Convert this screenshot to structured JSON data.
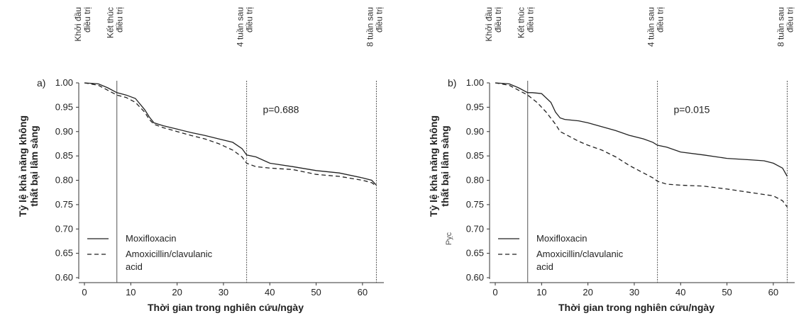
{
  "chart_data": [
    {
      "type": "line",
      "panel_label": "a)",
      "xlabel": "Thời gian trong nghiên cứu/ngày",
      "ylabel": [
        "Tỷ lệ khả năng không",
        "thất bại lâm sàng"
      ],
      "xticks": [
        0,
        10,
        20,
        30,
        40,
        50,
        60
      ],
      "yticks": [
        "1.00",
        "0.95",
        "0.90",
        "0.85",
        "0.80",
        "0.75",
        "0.70",
        "0.65",
        "0.60"
      ],
      "xlim": [
        0,
        64
      ],
      "ylim": [
        0.6,
        1.0
      ],
      "annotation": "p=0.688",
      "timepoints": [
        {
          "x": 0,
          "label": [
            "Khởi đầu",
            "điều trị"
          ]
        },
        {
          "x": 7,
          "label": [
            "Kết thúc",
            "điều trị"
          ]
        },
        {
          "x": 35,
          "label": [
            "4 tuần sau",
            "điều trị"
          ]
        },
        {
          "x": 63,
          "label": [
            "8 tuần sau",
            "điều trị"
          ]
        }
      ],
      "legend": [
        "Moxifloxacin",
        "Amoxicillin/clavulanic",
        "acid"
      ],
      "series": [
        {
          "name": "Moxifloxacin",
          "style": "solid",
          "x": [
            0,
            3,
            5,
            7,
            9,
            11,
            13,
            14,
            15,
            17,
            20,
            23,
            26,
            29,
            32,
            34,
            35,
            37,
            40,
            45,
            50,
            55,
            60,
            62,
            63
          ],
          "y": [
            1.0,
            0.998,
            0.99,
            0.98,
            0.975,
            0.968,
            0.945,
            0.93,
            0.918,
            0.912,
            0.905,
            0.898,
            0.892,
            0.885,
            0.878,
            0.865,
            0.852,
            0.848,
            0.835,
            0.828,
            0.82,
            0.815,
            0.805,
            0.8,
            0.79
          ]
        },
        {
          "name": "Amoxicillin/clavulanic acid",
          "style": "dashed",
          "x": [
            0,
            3,
            5,
            7,
            9,
            11,
            13,
            14,
            15,
            17,
            20,
            23,
            26,
            29,
            32,
            34,
            35,
            37,
            40,
            45,
            50,
            55,
            60,
            62,
            63
          ],
          "y": [
            1.0,
            0.995,
            0.985,
            0.975,
            0.97,
            0.96,
            0.94,
            0.925,
            0.915,
            0.908,
            0.9,
            0.892,
            0.885,
            0.875,
            0.862,
            0.848,
            0.835,
            0.828,
            0.825,
            0.822,
            0.812,
            0.808,
            0.8,
            0.795,
            0.788
          ]
        }
      ]
    },
    {
      "type": "line",
      "panel_label": "b)",
      "xlabel": "Thời gian trong nghiên cứu/ngày",
      "ylabel": [
        "Tỷ lệ khả năng không",
        "thất bại lâm sàng"
      ],
      "xticks": [
        0,
        10,
        20,
        30,
        40,
        50,
        60
      ],
      "yticks": [
        "1.00",
        "0.95",
        "0.90",
        "0.85",
        "0.80",
        "0.75",
        "0.70",
        "0.65",
        "0.60"
      ],
      "xlim": [
        0,
        64
      ],
      "ylim": [
        0.6,
        1.0
      ],
      "annotation": "p=0.015",
      "side_note": "Pỵc",
      "timepoints": [
        {
          "x": 0,
          "label": [
            "Khởi đầu",
            "điều trị"
          ]
        },
        {
          "x": 7,
          "label": [
            "Kết thúc",
            "điều trị"
          ]
        },
        {
          "x": 35,
          "label": [
            "4 tuần sau",
            "điều trị"
          ]
        },
        {
          "x": 63,
          "label": [
            "8 tuần sau",
            "điều trị"
          ]
        }
      ],
      "legend": [
        "Moxifloxacin",
        "Amoxicillin/clavulanic",
        "acid"
      ],
      "series": [
        {
          "name": "Moxifloxacin",
          "style": "solid",
          "x": [
            0,
            3,
            5,
            7,
            8,
            10,
            12,
            13,
            14,
            15,
            18,
            20,
            23,
            26,
            29,
            32,
            34,
            35,
            37,
            40,
            45,
            50,
            55,
            58,
            60,
            62,
            63
          ],
          "y": [
            1.0,
            0.998,
            0.99,
            0.98,
            0.98,
            0.978,
            0.96,
            0.94,
            0.928,
            0.925,
            0.922,
            0.918,
            0.91,
            0.902,
            0.892,
            0.885,
            0.878,
            0.872,
            0.868,
            0.858,
            0.852,
            0.845,
            0.842,
            0.84,
            0.835,
            0.825,
            0.808
          ]
        },
        {
          "name": "Amoxicillin/clavulanic acid",
          "style": "dashed",
          "x": [
            0,
            3,
            5,
            7,
            9,
            11,
            13,
            14,
            16,
            18,
            20,
            23,
            26,
            29,
            32,
            34,
            35,
            37,
            40,
            45,
            50,
            55,
            60,
            62,
            63
          ],
          "y": [
            1.0,
            0.995,
            0.985,
            0.975,
            0.96,
            0.94,
            0.915,
            0.9,
            0.89,
            0.88,
            0.872,
            0.862,
            0.848,
            0.83,
            0.815,
            0.805,
            0.798,
            0.792,
            0.79,
            0.788,
            0.782,
            0.775,
            0.768,
            0.758,
            0.745
          ]
        }
      ]
    }
  ]
}
